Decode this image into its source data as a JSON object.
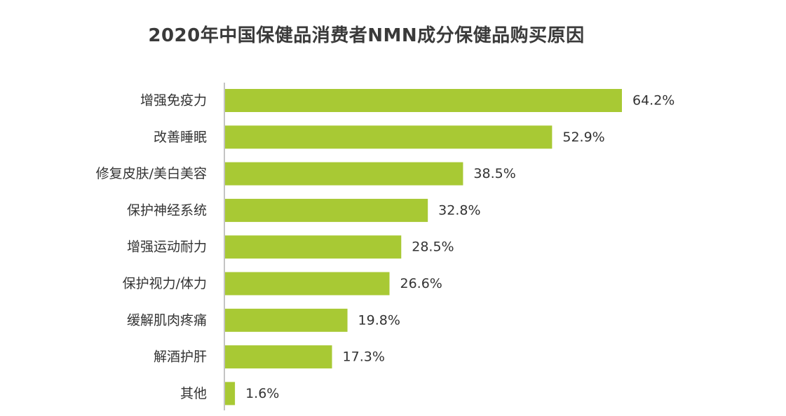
{
  "chart_data": {
    "type": "bar",
    "orientation": "horizontal",
    "title": "2020年中国保健品消费者NMN成分保健品购买原因",
    "categories": [
      "增强免疫力",
      "改善睡眠",
      "修复皮肤/美白美容",
      "保护神经系统",
      "增强运动耐力",
      "保护视力/体力",
      "缓解肌肉疼痛",
      "解酒护肝",
      "其他"
    ],
    "values": [
      64.2,
      52.9,
      38.5,
      32.8,
      28.5,
      26.6,
      19.8,
      17.3,
      1.6
    ],
    "value_labels": [
      "64.2%",
      "52.9%",
      "38.5%",
      "32.8%",
      "28.5%",
      "26.6%",
      "19.8%",
      "17.3%",
      "1.6%"
    ],
    "unit": "%",
    "grid": false,
    "legend": "none",
    "colors": {
      "bar": "#a8c934",
      "axis": "#8a8a8a",
      "text": "#333333",
      "title": "#3a3a3a"
    }
  }
}
